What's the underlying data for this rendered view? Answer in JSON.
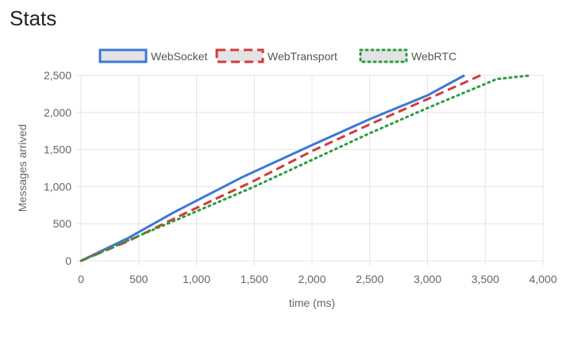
{
  "page": {
    "title": "Stats"
  },
  "chart_data": {
    "type": "line",
    "xlabel": "time (ms)",
    "ylabel": "Messages arrived",
    "xlim": [
      0,
      4000
    ],
    "ylim": [
      0,
      2500
    ],
    "x_ticks": [
      "0",
      "500",
      "1,000",
      "1,500",
      "2,000",
      "2,500",
      "3,000",
      "3,500",
      "4,000"
    ],
    "y_ticks": [
      "0",
      "500",
      "1,000",
      "1,500",
      "2,000",
      "2,500"
    ],
    "x_tick_values": [
      0,
      500,
      1000,
      1500,
      2000,
      2500,
      3000,
      3500,
      4000
    ],
    "y_tick_values": [
      0,
      500,
      1000,
      1500,
      2000,
      2500
    ],
    "grid": true,
    "legend_position": "top-center",
    "series": [
      {
        "name": "WebSocket",
        "color": "#3b78d8",
        "fill": "#e3e3e3",
        "dash": "solid",
        "points": [
          [
            0,
            0
          ],
          [
            400,
            300
          ],
          [
            800,
            650
          ],
          [
            1400,
            1130
          ],
          [
            2000,
            1560
          ],
          [
            2500,
            1910
          ],
          [
            3000,
            2230
          ],
          [
            3320,
            2500
          ]
        ]
      },
      {
        "name": "WebTransport",
        "color": "#d03b3b",
        "fill": "#e3e3e3",
        "dash": "dashed",
        "points": [
          [
            0,
            0
          ],
          [
            400,
            260
          ],
          [
            900,
            640
          ],
          [
            1500,
            1080
          ],
          [
            2000,
            1480
          ],
          [
            2500,
            1840
          ],
          [
            3000,
            2180
          ],
          [
            3460,
            2500
          ]
        ]
      },
      {
        "name": "WebRTC",
        "color": "#2a9d3e",
        "fill": "#e3e3e3",
        "dash": "dotted",
        "points": [
          [
            0,
            0
          ],
          [
            400,
            270
          ],
          [
            900,
            600
          ],
          [
            1500,
            1000
          ],
          [
            2000,
            1360
          ],
          [
            2500,
            1720
          ],
          [
            3000,
            2060
          ],
          [
            3600,
            2450
          ],
          [
            3900,
            2500
          ]
        ]
      }
    ]
  }
}
